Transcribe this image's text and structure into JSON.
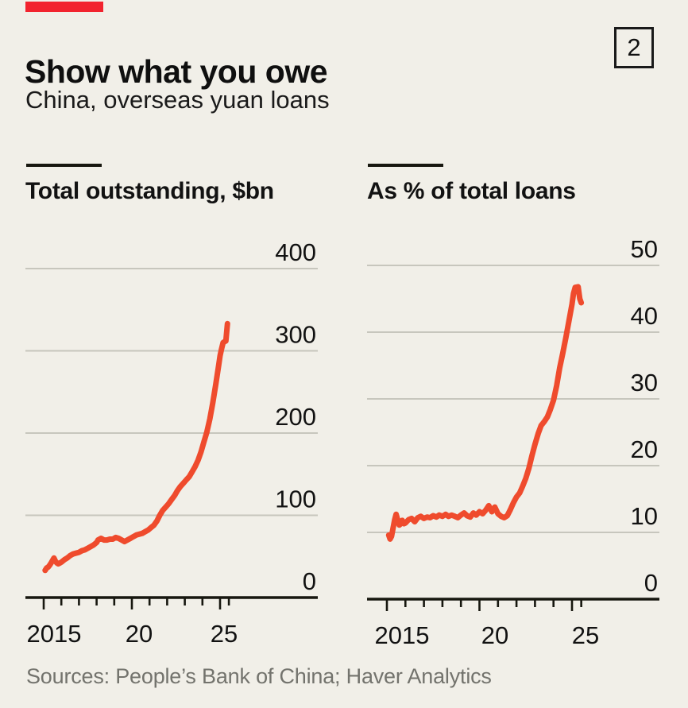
{
  "header": {
    "title": "Show what you owe",
    "index_badge": "2",
    "subtitle": "China, overseas yuan loans"
  },
  "source": "Sources: People’s Bank of China; Haver Analytics",
  "colors": {
    "background": "#f1efe8",
    "accent_red": "#f2232e",
    "line": "#ef4b2d",
    "grid": "#c7c6bd",
    "axis": "#17170f",
    "text": "#121212",
    "source_text": "#73736d"
  },
  "chart_data": [
    {
      "type": "line",
      "title": "Total outstanding, $bn",
      "ylabel": "$bn",
      "ylim": [
        0,
        400
      ],
      "y_ticks": [
        400,
        300,
        200,
        100,
        0
      ],
      "x_range": [
        2015,
        2026
      ],
      "x_tick_labels": [
        "2015",
        "20",
        "25"
      ],
      "x_tick_label_years": [
        2015,
        2020,
        2025
      ],
      "grid": "horizontal",
      "legend": "none",
      "series": [
        {
          "name": "Total outstanding, $bn",
          "points": [
            [
              2015.08,
              33
            ],
            [
              2015.17,
              36
            ],
            [
              2015.25,
              37
            ],
            [
              2015.33,
              39
            ],
            [
              2015.42,
              42
            ],
            [
              2015.5,
              45
            ],
            [
              2015.58,
              48
            ],
            [
              2015.67,
              44
            ],
            [
              2015.75,
              42
            ],
            [
              2015.83,
              41
            ],
            [
              2015.92,
              42
            ],
            [
              2016.0,
              43
            ],
            [
              2016.17,
              46
            ],
            [
              2016.33,
              48
            ],
            [
              2016.5,
              51
            ],
            [
              2016.67,
              53
            ],
            [
              2016.83,
              54
            ],
            [
              2017.0,
              55
            ],
            [
              2017.17,
              57
            ],
            [
              2017.33,
              58
            ],
            [
              2017.5,
              60
            ],
            [
              2017.67,
              62
            ],
            [
              2017.83,
              64
            ],
            [
              2018.0,
              67
            ],
            [
              2018.08,
              70
            ],
            [
              2018.25,
              72
            ],
            [
              2018.42,
              70
            ],
            [
              2018.58,
              70
            ],
            [
              2018.75,
              71
            ],
            [
              2018.92,
              71
            ],
            [
              2019.08,
              73
            ],
            [
              2019.25,
              72
            ],
            [
              2019.42,
              70
            ],
            [
              2019.58,
              68
            ],
            [
              2019.75,
              70
            ],
            [
              2019.92,
              72
            ],
            [
              2020.08,
              74
            ],
            [
              2020.25,
              76
            ],
            [
              2020.42,
              77
            ],
            [
              2020.58,
              78
            ],
            [
              2020.75,
              80
            ],
            [
              2020.92,
              82
            ],
            [
              2021.08,
              85
            ],
            [
              2021.25,
              88
            ],
            [
              2021.42,
              93
            ],
            [
              2021.58,
              100
            ],
            [
              2021.75,
              106
            ],
            [
              2021.92,
              110
            ],
            [
              2022.08,
              114
            ],
            [
              2022.25,
              119
            ],
            [
              2022.42,
              124
            ],
            [
              2022.58,
              130
            ],
            [
              2022.75,
              135
            ],
            [
              2022.92,
              139
            ],
            [
              2023.08,
              143
            ],
            [
              2023.25,
              147
            ],
            [
              2023.42,
              153
            ],
            [
              2023.58,
              159
            ],
            [
              2023.75,
              167
            ],
            [
              2023.92,
              177
            ],
            [
              2024.08,
              189
            ],
            [
              2024.25,
              201
            ],
            [
              2024.42,
              217
            ],
            [
              2024.58,
              236
            ],
            [
              2024.75,
              258
            ],
            [
              2024.92,
              282
            ],
            [
              2025.0,
              294
            ],
            [
              2025.08,
              302
            ],
            [
              2025.17,
              310
            ],
            [
              2025.25,
              311
            ],
            [
              2025.33,
              312
            ],
            [
              2025.42,
              333
            ]
          ]
        }
      ]
    },
    {
      "type": "line",
      "title": "As % of total loans",
      "ylabel": "%",
      "ylim": [
        0,
        50
      ],
      "y_ticks": [
        50,
        40,
        30,
        20,
        10,
        0
      ],
      "x_range": [
        2015,
        2026
      ],
      "x_tick_labels": [
        "2015",
        "20",
        "25"
      ],
      "x_tick_label_years": [
        2015,
        2020,
        2025
      ],
      "grid": "horizontal",
      "legend": "none",
      "series": [
        {
          "name": "As % of total loans",
          "points": [
            [
              2015.1,
              9.6
            ],
            [
              2015.17,
              9.0
            ],
            [
              2015.25,
              9.4
            ],
            [
              2015.33,
              10.6
            ],
            [
              2015.42,
              11.9
            ],
            [
              2015.5,
              12.7
            ],
            [
              2015.58,
              11.9
            ],
            [
              2015.67,
              11.1
            ],
            [
              2015.75,
              11.3
            ],
            [
              2015.83,
              11.8
            ],
            [
              2015.92,
              11.3
            ],
            [
              2016.0,
              11.4
            ],
            [
              2016.17,
              11.9
            ],
            [
              2016.33,
              12.1
            ],
            [
              2016.5,
              11.6
            ],
            [
              2016.67,
              12.2
            ],
            [
              2016.83,
              12.4
            ],
            [
              2017.0,
              12.1
            ],
            [
              2017.17,
              12.3
            ],
            [
              2017.33,
              12.2
            ],
            [
              2017.5,
              12.5
            ],
            [
              2017.67,
              12.3
            ],
            [
              2017.83,
              12.6
            ],
            [
              2018.0,
              12.4
            ],
            [
              2018.17,
              12.7
            ],
            [
              2018.33,
              12.4
            ],
            [
              2018.5,
              12.6
            ],
            [
              2018.67,
              12.4
            ],
            [
              2018.83,
              12.2
            ],
            [
              2019.0,
              12.6
            ],
            [
              2019.17,
              12.9
            ],
            [
              2019.33,
              12.5
            ],
            [
              2019.5,
              12.3
            ],
            [
              2019.67,
              12.9
            ],
            [
              2019.83,
              12.6
            ],
            [
              2020.0,
              13.1
            ],
            [
              2020.17,
              12.8
            ],
            [
              2020.33,
              13.3
            ],
            [
              2020.5,
              14.0
            ],
            [
              2020.67,
              13.1
            ],
            [
              2020.83,
              13.8
            ],
            [
              2021.0,
              12.8
            ],
            [
              2021.17,
              12.4
            ],
            [
              2021.33,
              12.2
            ],
            [
              2021.5,
              12.5
            ],
            [
              2021.67,
              13.4
            ],
            [
              2021.83,
              14.4
            ],
            [
              2022.0,
              15.3
            ],
            [
              2022.17,
              15.9
            ],
            [
              2022.33,
              16.9
            ],
            [
              2022.5,
              18.1
            ],
            [
              2022.67,
              19.6
            ],
            [
              2022.83,
              21.4
            ],
            [
              2023.0,
              23.2
            ],
            [
              2023.17,
              24.8
            ],
            [
              2023.33,
              26.0
            ],
            [
              2023.5,
              26.6
            ],
            [
              2023.67,
              27.3
            ],
            [
              2023.83,
              28.4
            ],
            [
              2024.0,
              29.8
            ],
            [
              2024.17,
              32.0
            ],
            [
              2024.33,
              34.6
            ],
            [
              2024.5,
              36.8
            ],
            [
              2024.67,
              39.2
            ],
            [
              2024.83,
              41.6
            ],
            [
              2025.0,
              44.2
            ],
            [
              2025.08,
              45.8
            ],
            [
              2025.17,
              46.7
            ],
            [
              2025.33,
              46.8
            ],
            [
              2025.42,
              45.0
            ],
            [
              2025.5,
              44.4
            ]
          ]
        }
      ]
    }
  ]
}
